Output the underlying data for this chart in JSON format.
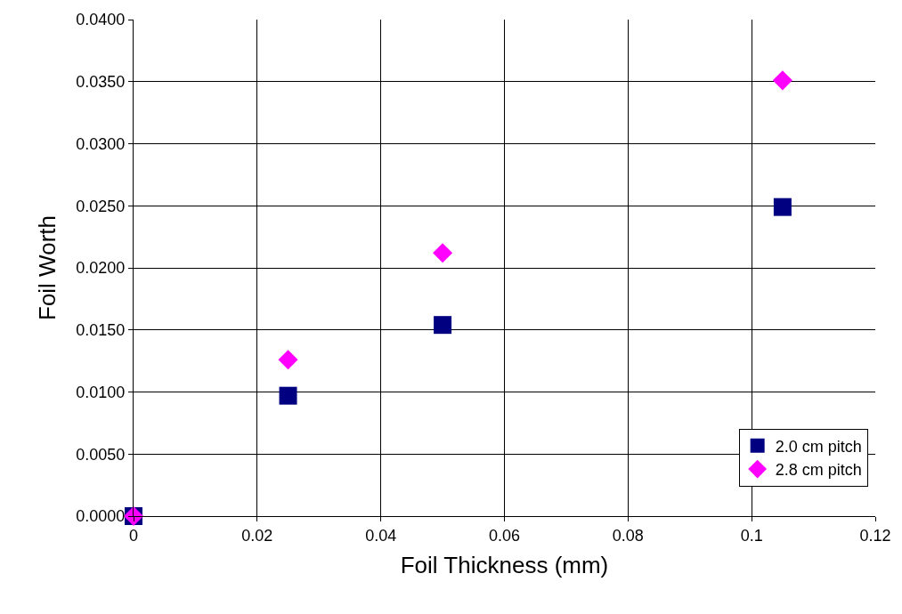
{
  "chart_data": {
    "type": "scatter",
    "xlabel": "Foil Thickness (mm)",
    "ylabel": "Foil Worth",
    "x": [
      0,
      0.025,
      0.05,
      0.105
    ],
    "series": [
      {
        "name": "2.0 cm pitch",
        "color": "#000080",
        "marker": "square",
        "values": [
          0,
          0.0097,
          0.0154,
          0.0249
        ]
      },
      {
        "name": "2.8 cm pitch",
        "color": "#ff00ff",
        "marker": "diamond",
        "values": [
          0,
          0.0126,
          0.0212,
          0.0351
        ]
      }
    ],
    "xlim": [
      0,
      0.12
    ],
    "xticks": [
      0,
      0.02,
      0.04,
      0.06,
      0.08,
      0.1,
      0.12
    ],
    "ylim": [
      0,
      0.04
    ],
    "yticks": [
      {
        "value": 0,
        "label": "0.0000"
      },
      {
        "value": 0.005,
        "label": "0.0050"
      },
      {
        "value": 0.01,
        "label": "0.0100"
      },
      {
        "value": 0.015,
        "label": "0.0150"
      },
      {
        "value": 0.02,
        "label": "0.0200"
      },
      {
        "value": 0.025,
        "label": "0.0250"
      },
      {
        "value": 0.03,
        "label": "0.0300"
      },
      {
        "value": 0.035,
        "label": "0.0350"
      },
      {
        "value": 0.04,
        "label": "0.0400"
      }
    ],
    "grid": true,
    "legend": "bottom right"
  }
}
